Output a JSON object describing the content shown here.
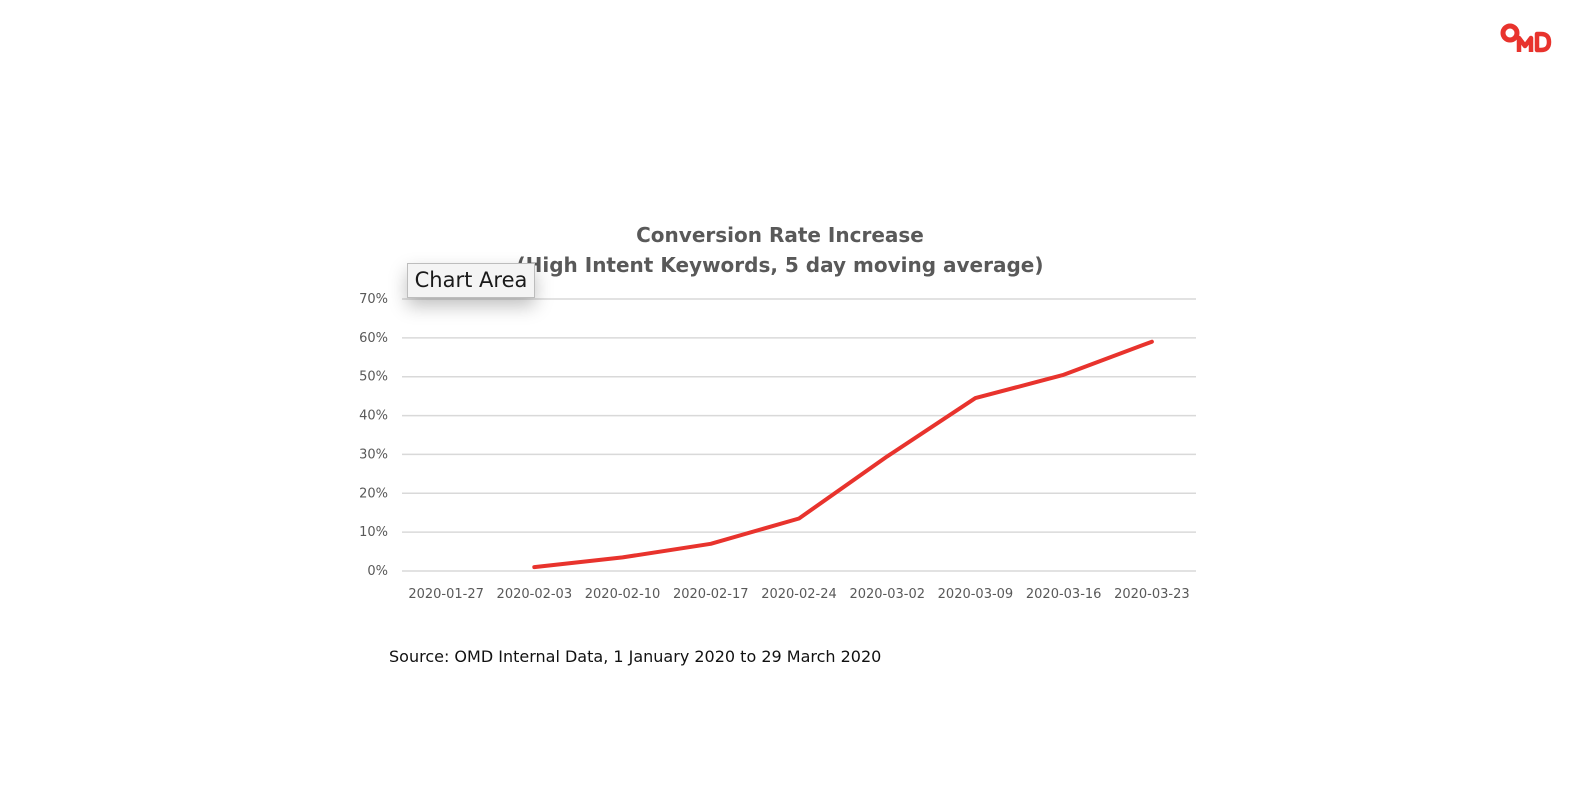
{
  "brand": {
    "logo_icon": "omd-logo-icon",
    "color": "#e8332d"
  },
  "tooltip": {
    "label": "Chart Area"
  },
  "source_note": "Source: OMD Internal Data, 1 January 2020 to 29 March 2020",
  "chart_data": {
    "type": "line",
    "title": "Conversion Rate Increase",
    "subtitle": "(High Intent Keywords, 5 day moving average)",
    "xlabel": "",
    "ylabel": "",
    "categories": [
      "2020-01-27",
      "2020-02-03",
      "2020-02-10",
      "2020-02-17",
      "2020-02-24",
      "2020-03-02",
      "2020-03-09",
      "2020-03-16",
      "2020-03-23"
    ],
    "y_ticks": [
      "0%",
      "10%",
      "20%",
      "30%",
      "40%",
      "50%",
      "60%",
      "70%"
    ],
    "ylim": [
      0,
      70
    ],
    "grid": true,
    "legend": "none",
    "series": [
      {
        "color": "#e8332d",
        "values": [
          null,
          1,
          3.5,
          7,
          13.5,
          29.5,
          44.5,
          50.5,
          59
        ]
      }
    ]
  }
}
